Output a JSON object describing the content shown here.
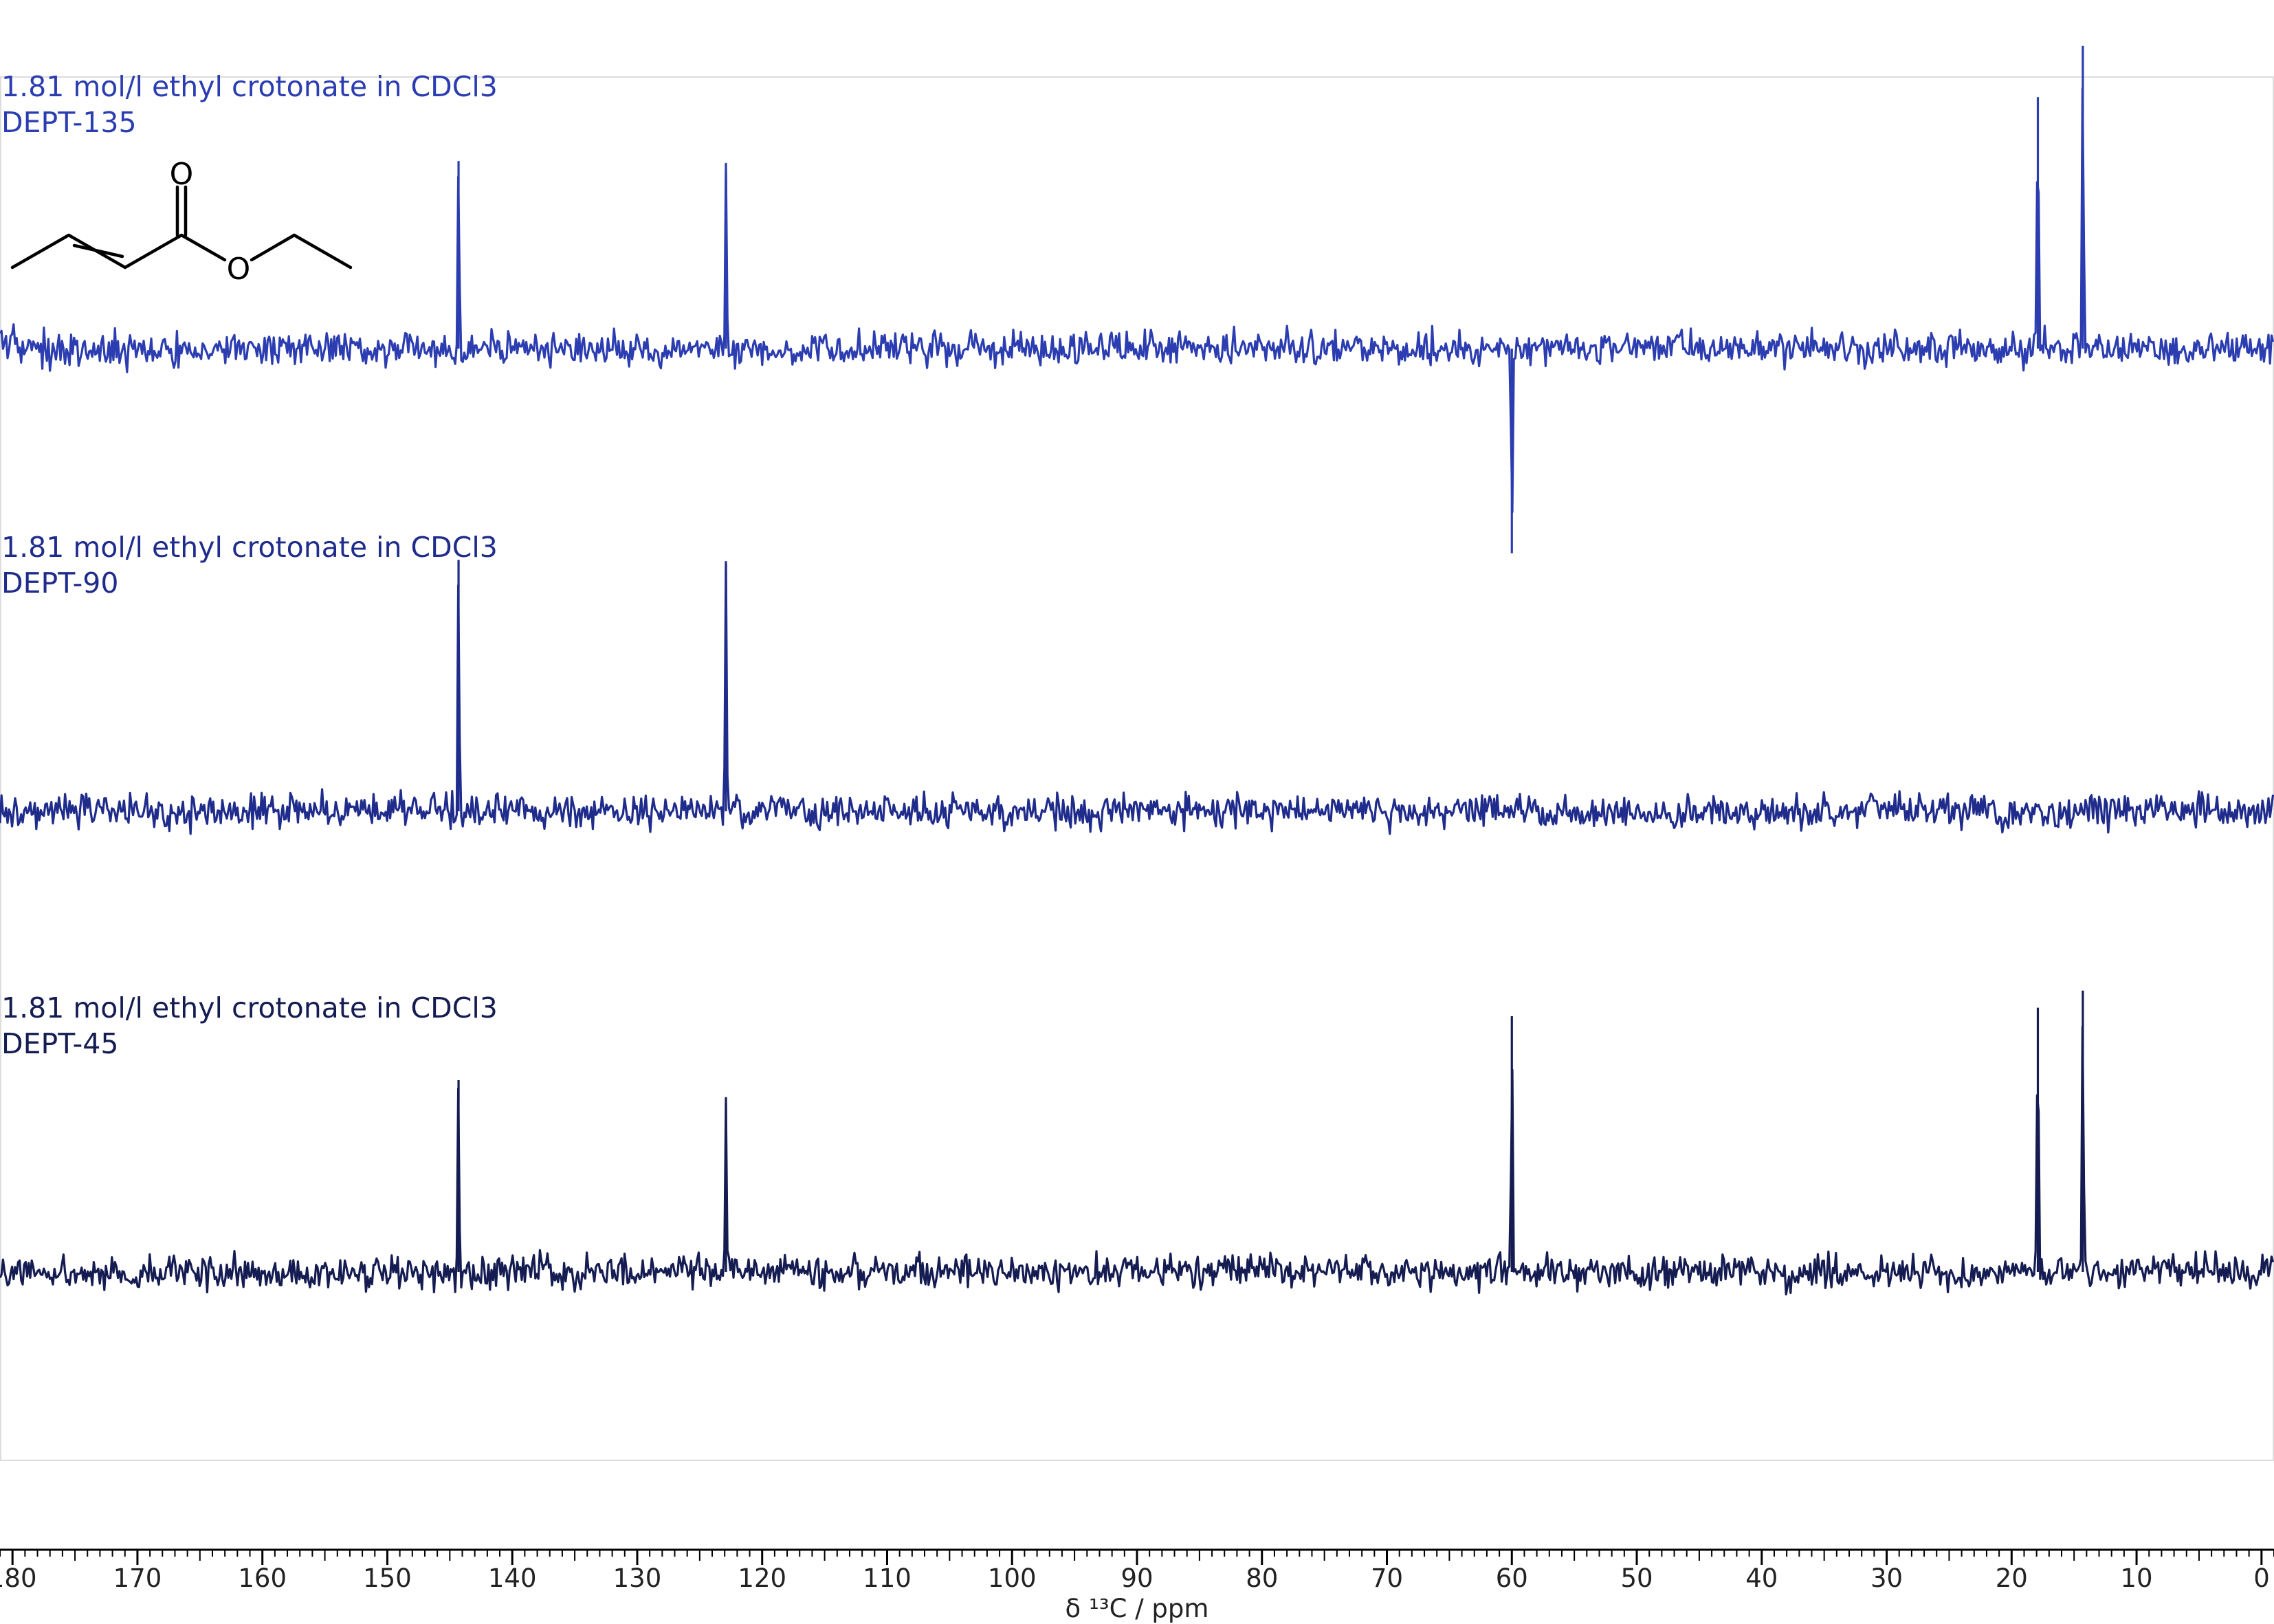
{
  "chart_data": {
    "type": "line",
    "xlabel": "δ ¹³C / ppm",
    "xlim": [
      181,
      -1
    ],
    "x_ticks": [
      180,
      170,
      160,
      150,
      140,
      130,
      120,
      110,
      100,
      90,
      80,
      70,
      60,
      50,
      40,
      30,
      20,
      10,
      0
    ],
    "grid": false,
    "series": [
      {
        "title": "1.81 mol/l ethyl crotonate in CDCl3",
        "name": "DEPT-135",
        "color": "#2b3db0",
        "peaks": [
          {
            "ppm": 144.3,
            "rel": 0.44
          },
          {
            "ppm": 122.9,
            "rel": 0.41
          },
          {
            "ppm": 60.0,
            "rel": -0.48
          },
          {
            "ppm": 17.9,
            "rel": 0.59
          },
          {
            "ppm": 14.3,
            "rel": 0.71
          }
        ]
      },
      {
        "title": "1.81 mol/l ethyl crotonate in CDCl3",
        "name": "DEPT-90",
        "color": "#1f2c8c",
        "peaks": [
          {
            "ppm": 144.3,
            "rel": 0.59
          },
          {
            "ppm": 122.9,
            "rel": 0.58
          }
        ]
      },
      {
        "title": "1.81 mol/l ethyl crotonate in CDCl3",
        "name": "DEPT-45",
        "color": "#141c52",
        "peaks": [
          {
            "ppm": 144.3,
            "rel": 0.45
          },
          {
            "ppm": 122.9,
            "rel": 0.41
          },
          {
            "ppm": 60.0,
            "rel": 0.6
          },
          {
            "ppm": 17.9,
            "rel": 0.62
          },
          {
            "ppm": 14.3,
            "rel": 0.66
          }
        ]
      }
    ]
  },
  "molecule": {
    "atoms": [
      "O",
      "O"
    ]
  }
}
